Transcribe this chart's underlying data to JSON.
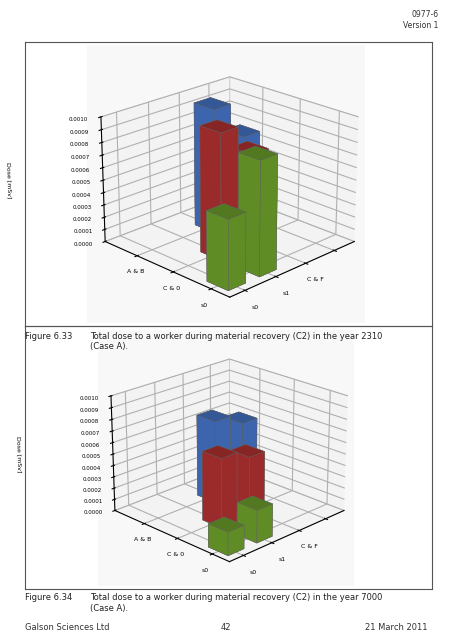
{
  "fig_width": 4.52,
  "fig_height": 6.4,
  "background_color": "#ffffff",
  "header_text": "0977-6\nVersion 1",
  "footer_left": "Galson Sciences Ltd",
  "footer_center": "42",
  "footer_right": "21 March 2011",
  "chart1": {
    "caption_num": "Figure 6.33",
    "caption_text": "Total dose to a worker during material recovery (C2) in the year 2310\n(Case A).",
    "ylabel": "Dose [mSv]",
    "ylim": [
      0.0,
      0.001
    ],
    "yticks": [
      0.0,
      0.0001,
      0.0002,
      0.0003,
      0.0004,
      0.0005,
      0.0006,
      0.0007,
      0.0008,
      0.0009,
      0.001
    ],
    "x_labels": [
      "s0",
      "s1",
      "C & F"
    ],
    "y_labels": [
      "s0",
      "C & 0",
      "A & B"
    ],
    "bars": [
      {
        "xi": 0,
        "yi": 0,
        "dz": 0.00055,
        "color": "#6B9E2A"
      },
      {
        "xi": 1,
        "yi": 0,
        "dz": 0.0009,
        "color": "#6B9E2A"
      },
      {
        "xi": 1,
        "yi": 1,
        "dz": 0.001,
        "color": "#B03030"
      },
      {
        "xi": 2,
        "yi": 1,
        "dz": 0.00075,
        "color": "#B03030"
      },
      {
        "xi": 2,
        "yi": 2,
        "dz": 0.001,
        "color": "#4472C4"
      },
      {
        "xi": 3,
        "yi": 2,
        "dz": 0.0007,
        "color": "#4472C4"
      }
    ]
  },
  "chart2": {
    "caption_num": "Figure 6.34",
    "caption_text": "Total dose to a worker during material recovery (C2) in the year 7000\n(Case A).",
    "ylabel": "Dose [mSv]",
    "ylim": [
      0.0,
      0.001
    ],
    "yticks": [
      0.0,
      0.0001,
      0.0002,
      0.0003,
      0.0004,
      0.0005,
      0.0006,
      0.0007,
      0.0008,
      0.0009,
      0.001
    ],
    "x_labels": [
      "s0",
      "s1",
      "C & F"
    ],
    "y_labels": [
      "s0",
      "C & 0",
      "A & B"
    ],
    "bars": [
      {
        "xi": 0,
        "yi": 0,
        "dz": 0.0002,
        "color": "#6B9E2A"
      },
      {
        "xi": 1,
        "yi": 0,
        "dz": 0.00028,
        "color": "#6B9E2A"
      },
      {
        "xi": 1,
        "yi": 1,
        "dz": 0.0006,
        "color": "#B03030"
      },
      {
        "xi": 2,
        "yi": 1,
        "dz": 0.00052,
        "color": "#B03030"
      },
      {
        "xi": 2,
        "yi": 2,
        "dz": 0.00072,
        "color": "#4472C4"
      },
      {
        "xi": 3,
        "yi": 2,
        "dz": 0.00062,
        "color": "#4472C4"
      }
    ]
  },
  "bar_width": 0.55,
  "bar_depth": 0.55,
  "elev": 22,
  "azim": 225,
  "dist": 9.5
}
